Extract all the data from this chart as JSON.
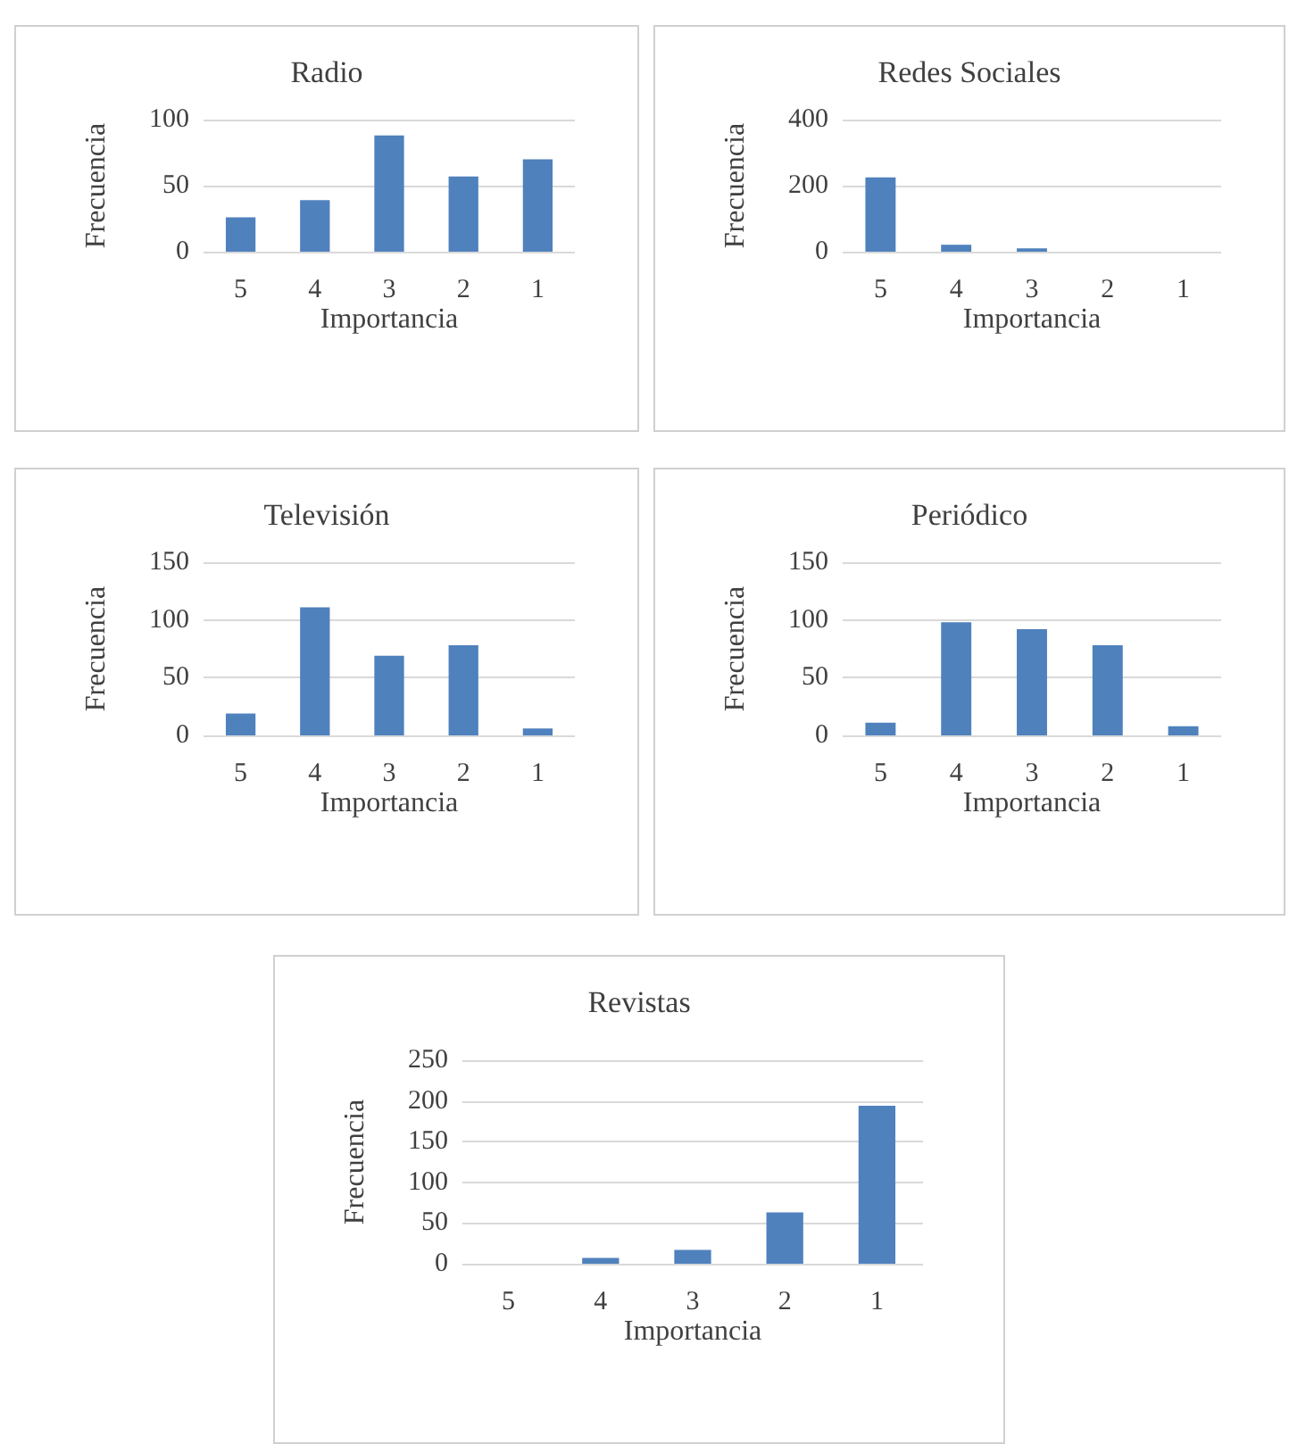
{
  "chart_data": [
    {
      "type": "bar",
      "title": "Radio",
      "xlabel": "Importancia",
      "ylabel": "Frecuencia",
      "categories": [
        "5",
        "4",
        "3",
        "2",
        "1"
      ],
      "values": [
        26,
        39,
        88,
        57,
        70
      ],
      "color": "#4f81bd",
      "ylim": [
        0,
        100
      ],
      "yticks": [
        0,
        50,
        100
      ],
      "grid": "y"
    },
    {
      "type": "bar",
      "title": "Redes Sociales",
      "xlabel": "Importancia",
      "ylabel": "Frecuencia",
      "categories": [
        "5",
        "4",
        "3",
        "2",
        "1"
      ],
      "values": [
        225,
        21,
        10,
        0,
        0
      ],
      "color": "#4f81bd",
      "ylim": [
        0,
        400
      ],
      "yticks": [
        0,
        200,
        400
      ],
      "grid": "y"
    },
    {
      "type": "bar",
      "title": "Televisión",
      "xlabel": "Importancia",
      "ylabel": "Frecuencia",
      "categories": [
        "5",
        "4",
        "3",
        "2",
        "1"
      ],
      "values": [
        19,
        111,
        69,
        78,
        6
      ],
      "color": "#4f81bd",
      "ylim": [
        0,
        150
      ],
      "yticks": [
        0,
        50,
        100,
        150
      ],
      "grid": "y"
    },
    {
      "type": "bar",
      "title": "Periódico",
      "xlabel": "Importancia",
      "ylabel": "Frecuencia",
      "categories": [
        "5",
        "4",
        "3",
        "2",
        "1"
      ],
      "values": [
        11,
        98,
        92,
        78,
        8
      ],
      "color": "#4f81bd",
      "ylim": [
        0,
        150
      ],
      "yticks": [
        0,
        50,
        100,
        150
      ],
      "grid": "y"
    },
    {
      "type": "bar",
      "title": "Revistas",
      "xlabel": "Importancia",
      "ylabel": "Frecuencia",
      "categories": [
        "5",
        "4",
        "3",
        "2",
        "1"
      ],
      "values": [
        0,
        7,
        17,
        63,
        194
      ],
      "color": "#4f81bd",
      "ylim": [
        0,
        250
      ],
      "yticks": [
        0,
        50,
        100,
        150,
        200,
        250
      ],
      "grid": "y"
    }
  ]
}
